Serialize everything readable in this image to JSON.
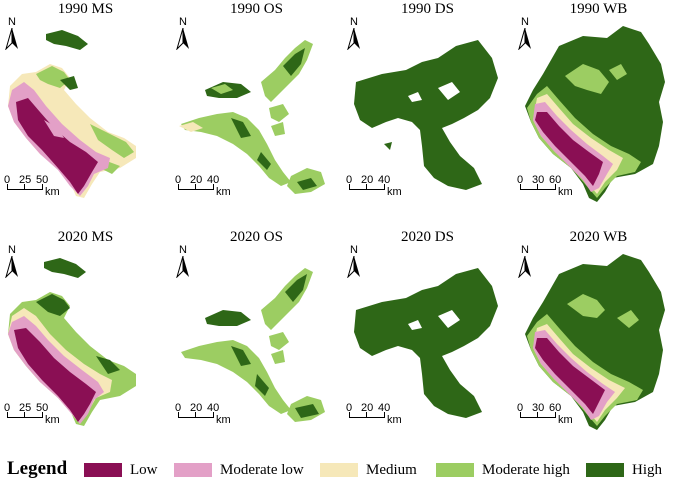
{
  "colors": {
    "low": "#8a0f54",
    "moderate_low": "#e3a0c7",
    "medium": "#f6e8b9",
    "moderate_high": "#9ccd62",
    "high": "#2e6717"
  },
  "panels": [
    {
      "title": "1990 MS",
      "north": "N",
      "scale": [
        "0",
        "25",
        "50"
      ],
      "unit": "km",
      "service": "MS"
    },
    {
      "title": "1990 OS",
      "north": "N",
      "scale": [
        "0",
        "20",
        "40"
      ],
      "unit": "km",
      "service": "OS"
    },
    {
      "title": "1990 DS",
      "north": "N",
      "scale": [
        "0",
        "20",
        "40"
      ],
      "unit": "km",
      "service": "DS"
    },
    {
      "title": "1990 WB",
      "north": "N",
      "scale": [
        "0",
        "30",
        "60"
      ],
      "unit": "km",
      "service": "WB"
    },
    {
      "title": "2020 MS",
      "north": "N",
      "scale": [
        "0",
        "25",
        "50"
      ],
      "unit": "km",
      "service": "MS"
    },
    {
      "title": "2020 OS",
      "north": "N",
      "scale": [
        "0",
        "20",
        "40"
      ],
      "unit": "km",
      "service": "OS"
    },
    {
      "title": "2020 DS",
      "north": "N",
      "scale": [
        "0",
        "20",
        "40"
      ],
      "unit": "km",
      "service": "DS"
    },
    {
      "title": "2020 WB",
      "north": "N",
      "scale": [
        "0",
        "30",
        "60"
      ],
      "unit": "km",
      "service": "WB"
    }
  ],
  "legend": {
    "title": "Legend",
    "items": [
      {
        "label": "Low",
        "color": "#8a0f54"
      },
      {
        "label": "Moderate low",
        "color": "#e3a0c7"
      },
      {
        "label": "Medium",
        "color": "#f6e8b9"
      },
      {
        "label": "Moderate high",
        "color": "#9ccd62"
      },
      {
        "label": "High",
        "color": "#2e6717"
      }
    ]
  }
}
